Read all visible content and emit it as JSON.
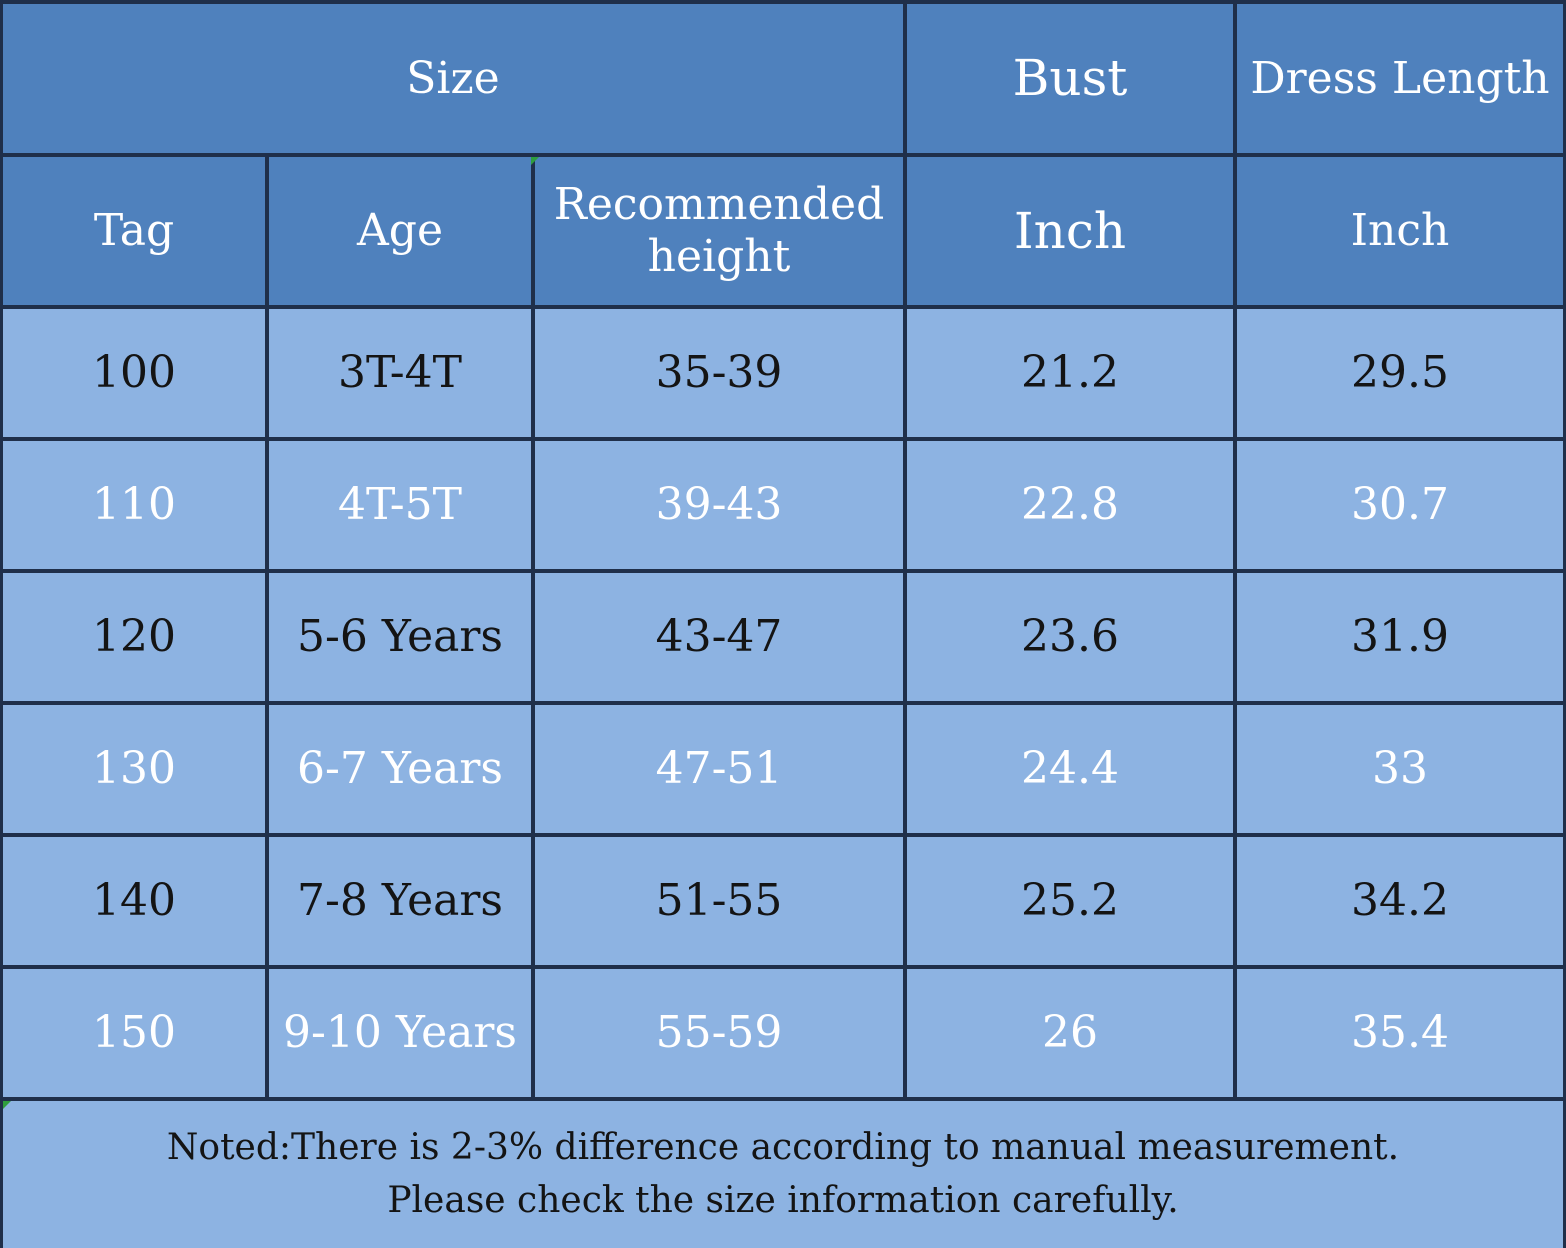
{
  "header": {
    "size": "Size",
    "bust": "Bust",
    "dress_length": "Dress Length",
    "tag": "Tag",
    "age": "Age",
    "recommended_height_line1": "Recommended",
    "recommended_height_line2": "height",
    "bust_unit": "Inch",
    "dress_length_unit": "Inch"
  },
  "rows": [
    {
      "tag": "100",
      "age": "3T-4T",
      "height": "35-39",
      "bust": "21.2",
      "length": "29.5"
    },
    {
      "tag": "110",
      "age": "4T-5T",
      "height": "39-43",
      "bust": "22.8",
      "length": "30.7"
    },
    {
      "tag": "120",
      "age": "5-6 Years",
      "height": "43-47",
      "bust": "23.6",
      "length": "31.9"
    },
    {
      "tag": "130",
      "age": "6-7 Years",
      "height": "47-51",
      "bust": "24.4",
      "length": "33"
    },
    {
      "tag": "140",
      "age": "7-8 Years",
      "height": "51-55",
      "bust": "25.2",
      "length": "34.2"
    },
    {
      "tag": "150",
      "age": "9-10 Years",
      "height": "55-59",
      "bust": "26",
      "length": "35.4"
    }
  ],
  "note": {
    "line1": "Noted:There is 2-3% difference according to manual measurement.",
    "line2": "Please check the size information carefully."
  },
  "colors": {
    "header_bg": "#4f81bd",
    "row_bg": "#8db3e2",
    "border": "#1f2f4a",
    "dark_text": "#141414",
    "light_text": "#ffffff"
  }
}
